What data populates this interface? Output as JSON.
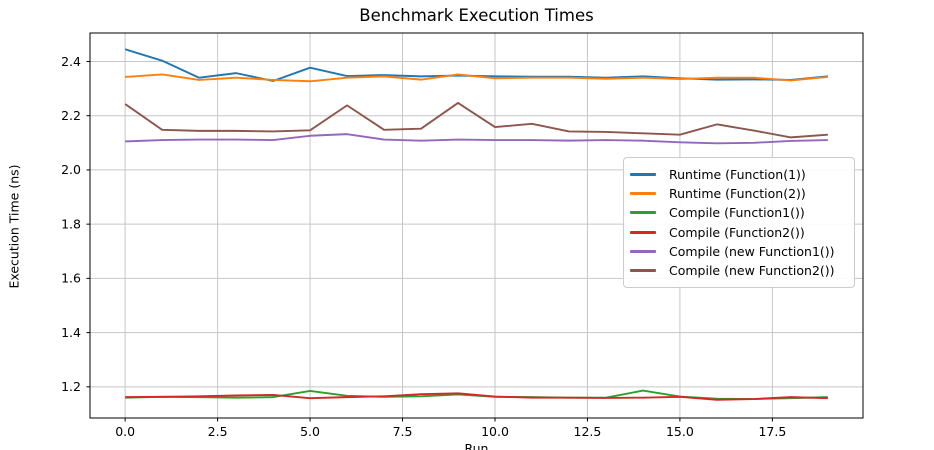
{
  "chart_data": {
    "type": "line",
    "title": "Benchmark Execution Times",
    "xlabel": "Run",
    "ylabel": "Execution Time (ns)",
    "grid": true,
    "legend_position": "center-right",
    "xlim": [
      -0.95,
      19.95
    ],
    "ylim": [
      1.085,
      2.505
    ],
    "xticks": {
      "values": [
        0,
        2.5,
        5,
        7.5,
        10,
        12.5,
        15,
        17.5
      ],
      "labels": [
        "0.0",
        "2.5",
        "5.0",
        "7.5",
        "10.0",
        "12.5",
        "15.0",
        "17.5"
      ]
    },
    "yticks": {
      "values": [
        1.2,
        1.4,
        1.6,
        1.8,
        2.0,
        2.2,
        2.4
      ],
      "labels": [
        "1.2",
        "1.4",
        "1.6",
        "1.8",
        "2.0",
        "2.2",
        "2.4"
      ]
    },
    "x": [
      0,
      1,
      2,
      3,
      4,
      5,
      6,
      7,
      8,
      9,
      10,
      11,
      12,
      13,
      14,
      15,
      16,
      17,
      18,
      19
    ],
    "series": [
      {
        "name": "Runtime (Function(1))",
        "color": "#1f77b4",
        "values": [
          2.445,
          2.403,
          2.34,
          2.357,
          2.328,
          2.377,
          2.346,
          2.35,
          2.345,
          2.348,
          2.345,
          2.344,
          2.344,
          2.34,
          2.345,
          2.338,
          2.333,
          2.334,
          2.332,
          2.345
        ]
      },
      {
        "name": "Runtime (Function(2))",
        "color": "#ff7f0e",
        "values": [
          2.343,
          2.352,
          2.332,
          2.34,
          2.332,
          2.327,
          2.34,
          2.345,
          2.333,
          2.352,
          2.338,
          2.34,
          2.34,
          2.336,
          2.34,
          2.335,
          2.34,
          2.34,
          2.33,
          2.343
        ]
      },
      {
        "name": "Compile (Function1())",
        "color": "#2ca02c",
        "values": [
          1.16,
          1.163,
          1.162,
          1.16,
          1.162,
          1.185,
          1.167,
          1.163,
          1.165,
          1.172,
          1.163,
          1.162,
          1.16,
          1.16,
          1.186,
          1.164,
          1.156,
          1.155,
          1.158,
          1.162
        ]
      },
      {
        "name": "Compile (Function2())",
        "color": "#d62728",
        "values": [
          1.162,
          1.163,
          1.165,
          1.168,
          1.17,
          1.158,
          1.162,
          1.165,
          1.173,
          1.176,
          1.164,
          1.16,
          1.16,
          1.159,
          1.16,
          1.163,
          1.152,
          1.155,
          1.162,
          1.158
        ]
      },
      {
        "name": "Compile (new Function1())",
        "color": "#9467bd",
        "values": [
          2.105,
          2.11,
          2.112,
          2.112,
          2.11,
          2.126,
          2.132,
          2.112,
          2.108,
          2.112,
          2.11,
          2.11,
          2.108,
          2.11,
          2.108,
          2.102,
          2.098,
          2.1,
          2.107,
          2.11
        ]
      },
      {
        "name": "Compile (new Function2())",
        "color": "#8c564b",
        "values": [
          2.243,
          2.148,
          2.144,
          2.144,
          2.142,
          2.146,
          2.238,
          2.148,
          2.152,
          2.247,
          2.158,
          2.17,
          2.142,
          2.14,
          2.135,
          2.13,
          2.168,
          2.145,
          2.12,
          2.13
        ]
      }
    ],
    "colors": {
      "grid": "#c6c6c6",
      "spine": "#000000",
      "background": "#ffffff"
    }
  }
}
